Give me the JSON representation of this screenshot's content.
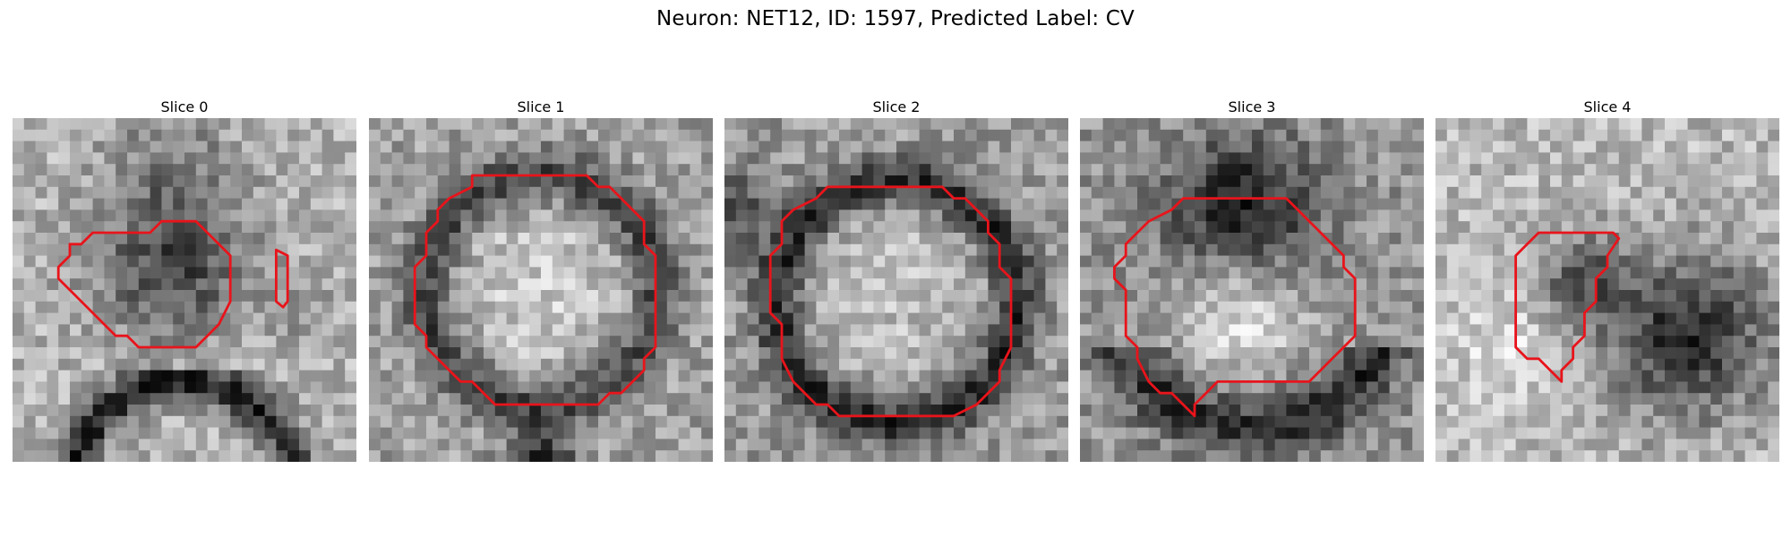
{
  "figure": {
    "title": "Neuron: NET12, ID: 1597, Predicted Label: CV"
  },
  "contour_color": "#e8141b",
  "slices": [
    {
      "title": "Slice 0",
      "description": "gray noisy EM patch, dark blob center, dark arc at bottom",
      "contours": [
        [
          [
            12,
            10
          ],
          [
            13,
            9
          ],
          [
            16,
            9
          ],
          [
            19,
            12
          ],
          [
            19,
            16
          ],
          [
            18,
            18
          ],
          [
            17,
            19
          ],
          [
            16,
            20
          ],
          [
            11,
            20
          ],
          [
            10,
            19
          ],
          [
            9,
            19
          ],
          [
            5,
            15
          ],
          [
            4,
            14
          ],
          [
            4,
            13
          ],
          [
            5,
            12
          ],
          [
            5,
            11
          ],
          [
            6,
            11
          ],
          [
            7,
            10
          ]
        ],
        [
          [
            23,
            11.5
          ],
          [
            23.6,
            11.8
          ],
          [
            24,
            12
          ],
          [
            24,
            16
          ],
          [
            23.6,
            16.5
          ],
          [
            23,
            16
          ]
        ]
      ]
    },
    {
      "title": "Slice 1",
      "description": "ring-shaped cell body with bright interior",
      "contours": [
        [
          [
            10,
            5
          ],
          [
            19,
            5
          ],
          [
            20,
            6
          ],
          [
            21,
            6
          ],
          [
            24,
            9
          ],
          [
            24,
            11
          ],
          [
            25,
            12
          ],
          [
            25,
            20
          ],
          [
            24,
            21
          ],
          [
            24,
            22
          ],
          [
            22,
            24
          ],
          [
            21,
            24
          ],
          [
            20,
            25
          ],
          [
            11,
            25
          ],
          [
            10,
            24
          ],
          [
            9,
            23
          ],
          [
            8,
            23
          ],
          [
            7,
            22
          ],
          [
            5,
            20
          ],
          [
            5,
            19
          ],
          [
            4,
            18
          ],
          [
            4,
            13
          ],
          [
            5,
            12
          ],
          [
            5,
            10
          ],
          [
            6,
            9
          ],
          [
            6,
            8
          ],
          [
            7,
            7
          ],
          [
            9,
            6
          ],
          [
            9,
            5
          ]
        ]
      ]
    },
    {
      "title": "Slice 2",
      "description": "ring-shaped cell body, dark membrane, bright interior",
      "contours": [
        [
          [
            9,
            6
          ],
          [
            19,
            6
          ],
          [
            20,
            7
          ],
          [
            21,
            7
          ],
          [
            23,
            9
          ],
          [
            23,
            10
          ],
          [
            24,
            11
          ],
          [
            24,
            13
          ],
          [
            25,
            14
          ],
          [
            25,
            20
          ],
          [
            24,
            22
          ],
          [
            24,
            23
          ],
          [
            22,
            25
          ],
          [
            20,
            26
          ],
          [
            10,
            26
          ],
          [
            9,
            25
          ],
          [
            8,
            25
          ],
          [
            6,
            23
          ],
          [
            5,
            21
          ],
          [
            5,
            18
          ],
          [
            4,
            17
          ],
          [
            4,
            12
          ],
          [
            5,
            11
          ],
          [
            5,
            9
          ],
          [
            6,
            8
          ],
          [
            8,
            7
          ]
        ]
      ]
    },
    {
      "title": "Slice 3",
      "description": "dark top band, bright center blob, dark lower band",
      "contours": [
        [
          [
            10,
            7
          ],
          [
            18,
            7
          ],
          [
            19,
            8
          ],
          [
            20,
            9
          ],
          [
            21,
            10
          ],
          [
            23,
            12
          ],
          [
            23,
            13
          ],
          [
            24,
            14
          ],
          [
            24,
            19
          ],
          [
            23,
            20
          ],
          [
            22,
            21
          ],
          [
            21,
            22
          ],
          [
            20,
            23
          ],
          [
            12,
            23
          ],
          [
            11,
            24
          ],
          [
            10,
            25
          ],
          [
            10,
            26
          ],
          [
            9,
            25
          ],
          [
            8,
            24
          ],
          [
            7,
            24
          ],
          [
            6,
            23
          ],
          [
            5,
            21
          ],
          [
            5,
            20
          ],
          [
            4,
            19
          ],
          [
            4,
            15
          ],
          [
            3,
            14
          ],
          [
            3,
            13
          ],
          [
            4,
            12
          ],
          [
            4,
            11
          ],
          [
            5,
            10
          ],
          [
            6,
            9
          ],
          [
            8,
            8
          ],
          [
            9,
            7
          ]
        ]
      ]
    },
    {
      "title": "Slice 4",
      "description": "diagonal pale band, dark mass right side",
      "contours": [
        [
          [
            9,
            10
          ],
          [
            15.5,
            10
          ],
          [
            16,
            10.5
          ],
          [
            15,
            12
          ],
          [
            15,
            13
          ],
          [
            14,
            14
          ],
          [
            14,
            16
          ],
          [
            13,
            17
          ],
          [
            13,
            19
          ],
          [
            12,
            20
          ],
          [
            12,
            21
          ],
          [
            11,
            22
          ],
          [
            11,
            23
          ],
          [
            10,
            22
          ],
          [
            9,
            21
          ],
          [
            8,
            21
          ],
          [
            7,
            20
          ],
          [
            7,
            12
          ],
          [
            8,
            11
          ]
        ]
      ]
    }
  ]
}
